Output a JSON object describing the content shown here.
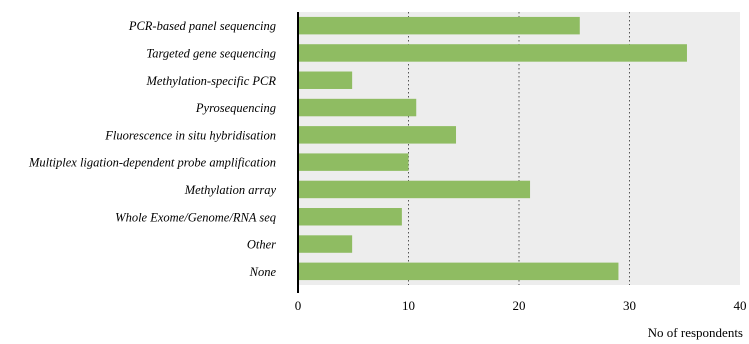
{
  "chart_data": {
    "type": "bar",
    "orientation": "horizontal",
    "categories": [
      "PCR-based panel sequencing",
      "Targeted gene sequencing",
      "Methylation-specific PCR",
      "Pyrosequencing",
      "Fluorescence in situ hybridisation",
      "Multiplex ligation-dependent probe amplification",
      "Methylation array",
      "Whole Exome/Genome/RNA seq",
      "Other",
      "None"
    ],
    "values": [
      25.5,
      35.2,
      4.9,
      10.7,
      14.3,
      10.0,
      21.0,
      9.4,
      4.9,
      29.0
    ],
    "title": "",
    "xlabel": "No of respondents",
    "ylabel": "",
    "xlim": [
      0,
      40
    ],
    "xticks": [
      "0",
      "10",
      "20",
      "30",
      "40"
    ],
    "grid": "vertical dotted",
    "legend": "none",
    "colors": {
      "bar": "#8fbc62",
      "plot_background": "#ededed",
      "grid": "#555555",
      "axis": "#000000"
    }
  }
}
